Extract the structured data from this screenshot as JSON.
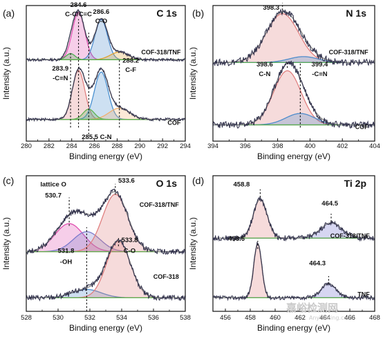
{
  "watermark": {
    "main": "嘉峪检测网",
    "sub": "AnyTesting.com"
  },
  "colors": {
    "data": "#33334d",
    "envelope": "#8a8a8a",
    "baseline": "#5ab04a"
  },
  "chart_data": [
    {
      "id": "a",
      "type": "line",
      "panel_label": "(a)",
      "element": "C 1s",
      "xlabel": "Binding energy (eV)",
      "ylabel": "Intensity (a.u.)",
      "xlim": [
        280,
        294
      ],
      "xticks": [
        280,
        282,
        284,
        286,
        288,
        290,
        292,
        294
      ],
      "grid": false,
      "series": [
        {
          "name": "COF-318/TNF",
          "offset": 0.6,
          "scale": 0.38,
          "noise": 0.01,
          "components": [
            {
              "center": 284.6,
              "height": 0.92,
              "width": 0.55,
              "color": "#e04fb0",
              "label": "C-C/C=C"
            },
            {
              "center": 286.6,
              "height": 0.78,
              "width": 0.55,
              "color": "#4e8ccc",
              "label": "C-O"
            },
            {
              "center": 288.2,
              "height": 0.15,
              "width": 0.8,
              "color": "#e0a030",
              "label": "C-F"
            },
            {
              "center": 283.9,
              "height": 0.12,
              "width": 0.4,
              "color": "#4caf50",
              "label": "-C≡N"
            }
          ]
        },
        {
          "name": "COF",
          "offset": 0.16,
          "scale": 0.38,
          "noise": 0.01,
          "components": [
            {
              "center": 284.6,
              "height": 0.95,
              "width": 0.55,
              "color": "#e07f7f",
              "label": "C-C/C=C"
            },
            {
              "center": 286.6,
              "height": 0.92,
              "width": 0.6,
              "color": "#4a90d0",
              "label": "C-O"
            },
            {
              "center": 288.2,
              "height": 0.22,
              "width": 0.9,
              "color": "#f0b070",
              "label": "C-F"
            },
            {
              "center": 285.5,
              "height": 0.2,
              "width": 0.5,
              "color": "#5fb050",
              "label": "C-N"
            }
          ]
        }
      ],
      "annotations": [
        {
          "text": "284.6",
          "x": 284.6,
          "y": 0.99
        },
        {
          "text": "C-C/C=C",
          "x": 284.6,
          "y": 0.92
        },
        {
          "text": "286.6",
          "x": 286.6,
          "y": 0.94
        },
        {
          "text": "C-O",
          "x": 286.6,
          "y": 0.87
        },
        {
          "text": "283.9",
          "x": 283.0,
          "y": 0.52
        },
        {
          "text": "-C≡N",
          "x": 283.0,
          "y": 0.45
        },
        {
          "text": "288.2",
          "x": 289.2,
          "y": 0.58
        },
        {
          "text": "C-F",
          "x": 289.2,
          "y": 0.51
        },
        {
          "text": "285.5 C-N",
          "x": 286.2,
          "y": 0.015
        }
      ],
      "dashed_lines": [
        {
          "x": 283.9,
          "y0": 0.1,
          "y1": 0.66
        },
        {
          "x": 284.6,
          "y0": 0.1,
          "y1": 0.9
        },
        {
          "x": 285.5,
          "y0": 0.05,
          "y1": 0.8
        },
        {
          "x": 288.2,
          "y0": 0.1,
          "y1": 0.61
        }
      ],
      "series_labels": [
        {
          "text": "COF-318/TNF",
          "x": 293.6,
          "y": 0.64
        },
        {
          "text": "COF",
          "x": 293.6,
          "y": 0.12
        }
      ]
    },
    {
      "id": "b",
      "type": "line",
      "panel_label": "(b)",
      "element": "N 1s",
      "xlabel": "Binding energy (eV)",
      "ylabel": "Intensity (a.u.)",
      "xlim": [
        394,
        404
      ],
      "xticks": [
        394,
        396,
        398,
        400,
        402,
        404
      ],
      "grid": false,
      "series": [
        {
          "name": "COF-318/TNF",
          "offset": 0.58,
          "scale": 0.36,
          "noise": 0.025,
          "components": [
            {
              "center": 398.3,
              "height": 1.0,
              "width": 1.0,
              "color": "#e07f7f",
              "label": ""
            },
            {
              "center": 399.6,
              "height": 0.12,
              "width": 0.9,
              "color": "#4e8ccc",
              "label": ""
            }
          ]
        },
        {
          "name": "COF",
          "offset": 0.12,
          "scale": 0.42,
          "noise": 0.025,
          "components": [
            {
              "center": 398.6,
              "height": 0.95,
              "width": 0.85,
              "color": "#e07f7f",
              "label": "C-N"
            },
            {
              "center": 399.4,
              "height": 0.2,
              "width": 0.9,
              "color": "#4e8ccc",
              "label": "-C≡N"
            }
          ]
        }
      ],
      "annotations": [
        {
          "text": "398.3",
          "x": 397.6,
          "y": 0.97
        },
        {
          "text": "398.6",
          "x": 397.2,
          "y": 0.55
        },
        {
          "text": "C-N",
          "x": 397.2,
          "y": 0.48
        },
        {
          "text": "399.4",
          "x": 400.6,
          "y": 0.55
        },
        {
          "text": "-C≡N",
          "x": 400.6,
          "y": 0.48
        }
      ],
      "dashed_lines": [
        {
          "x": 398.3,
          "y0": 0.94,
          "y1": 1.02
        },
        {
          "x": 398.6,
          "y0": 0.54,
          "y1": 0.58
        },
        {
          "x": 399.4,
          "y0": 0.1,
          "y1": 0.58
        }
      ],
      "series_labels": [
        {
          "text": "COF-318/TNF",
          "x": 403.6,
          "y": 0.64
        },
        {
          "text": "COF",
          "x": 403.6,
          "y": 0.09
        }
      ]
    },
    {
      "id": "c",
      "type": "line",
      "panel_label": "(c)",
      "element": "O 1s",
      "xlabel": "Binding energy (eV)",
      "ylabel": "Intensity (a.u.)",
      "xlim": [
        528,
        538
      ],
      "xticks": [
        528,
        530,
        532,
        534,
        536,
        538
      ],
      "grid": false,
      "series": [
        {
          "name": "COF-318/TNF",
          "offset": 0.44,
          "scale": 0.46,
          "noise": 0.02,
          "components": [
            {
              "center": 530.7,
              "height": 0.45,
              "width": 0.9,
              "color": "#e04fb0",
              "label": "lattice O"
            },
            {
              "center": 531.8,
              "height": 0.32,
              "width": 0.85,
              "color": "#7a7acc",
              "label": "-OH"
            },
            {
              "center": 533.6,
              "height": 0.92,
              "width": 0.8,
              "color": "#e07f7f",
              "label": "C-O"
            }
          ]
        },
        {
          "name": "COF-318",
          "offset": 0.1,
          "scale": 0.44,
          "noise": 0.02,
          "components": [
            {
              "center": 531.8,
              "height": 0.14,
              "width": 0.9,
              "color": "#4e8ccc",
              "label": "-OH"
            },
            {
              "center": 533.8,
              "height": 0.95,
              "width": 0.75,
              "color": "#e07f7f",
              "label": "C-O"
            }
          ]
        }
      ],
      "annotations": [
        {
          "text": "lattice O",
          "x": 529.7,
          "y": 0.92
        },
        {
          "text": "530.7",
          "x": 529.7,
          "y": 0.84
        },
        {
          "text": "533.6",
          "x": 534.3,
          "y": 0.95
        },
        {
          "text": "531.8",
          "x": 530.5,
          "y": 0.43
        },
        {
          "text": "-OH",
          "x": 530.5,
          "y": 0.35
        },
        {
          "text": "533.8",
          "x": 534.5,
          "y": 0.51
        },
        {
          "text": "C-O",
          "x": 534.5,
          "y": 0.43
        }
      ],
      "dashed_lines": [
        {
          "x": 530.7,
          "y0": 0.63,
          "y1": 0.84
        },
        {
          "x": 531.8,
          "y0": 0.0,
          "y1": 0.62
        },
        {
          "x": 533.6,
          "y0": 0.86,
          "y1": 0.94
        },
        {
          "x": 533.8,
          "y0": 0.48,
          "y1": 0.54
        }
      ],
      "series_labels": [
        {
          "text": "COF-318/TNF",
          "x": 537.6,
          "y": 0.77
        },
        {
          "text": "COF-318",
          "x": 537.6,
          "y": 0.24
        }
      ]
    },
    {
      "id": "d",
      "type": "line",
      "panel_label": "(d)",
      "element": "Ti 2p",
      "xlabel": "Binding energy (eV)",
      "ylabel": "Intensity (a.u.)",
      "xlim": [
        455,
        468
      ],
      "xticks": [
        456,
        458,
        460,
        462,
        464,
        466,
        468
      ],
      "grid": false,
      "series": [
        {
          "name": "COF-318/TNF",
          "offset": 0.54,
          "scale": 0.4,
          "noise": 0.02,
          "components": [
            {
              "center": 458.8,
              "height": 0.72,
              "width": 0.55,
              "color": "#e07f7f",
              "label": ""
            },
            {
              "center": 464.5,
              "height": 0.28,
              "width": 0.85,
              "color": "#6a6acc",
              "label": ""
            }
          ]
        },
        {
          "name": "TNF",
          "offset": 0.1,
          "scale": 0.4,
          "noise": 0.015,
          "components": [
            {
              "center": 458.6,
              "height": 1.0,
              "width": 0.32,
              "color": "#e07f7f",
              "label": ""
            },
            {
              "center": 464.3,
              "height": 0.26,
              "width": 0.6,
              "color": "#6a6acc",
              "label": ""
            }
          ]
        }
      ],
      "annotations": [
        {
          "text": "458.8",
          "x": 457.3,
          "y": 0.92
        },
        {
          "text": "464.5",
          "x": 464.4,
          "y": 0.78
        },
        {
          "text": "458.6",
          "x": 456.9,
          "y": 0.52
        },
        {
          "text": "464.3",
          "x": 463.4,
          "y": 0.34
        }
      ],
      "dashed_lines": [
        {
          "x": 458.8,
          "y0": 0.84,
          "y1": 0.9
        },
        {
          "x": 464.5,
          "y0": 0.66,
          "y1": 0.72
        },
        {
          "x": 458.6,
          "y0": 0.46,
          "y1": 0.52
        },
        {
          "x": 464.3,
          "y0": 0.2,
          "y1": 0.26
        }
      ],
      "series_labels": [
        {
          "text": "COF-318/TNF",
          "x": 467.6,
          "y": 0.54
        },
        {
          "text": "TNF",
          "x": 467.6,
          "y": 0.11
        }
      ]
    }
  ]
}
